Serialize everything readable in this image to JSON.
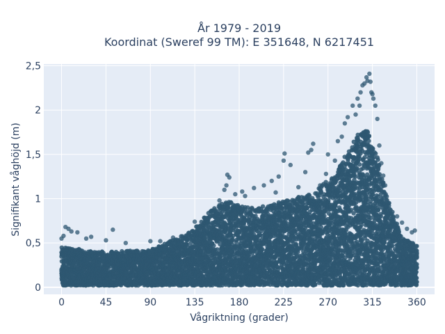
{
  "chart_data": {
    "type": "scatter",
    "title_line1": "År 1979 - 2019",
    "title_line2": "Koordinat (Sweref 99 TM): E 351648, N 6217451",
    "xlabel": "Vågriktning (grader)",
    "ylabel": "Signifikant våghöjd (m)",
    "xlim": [
      -18,
      378
    ],
    "ylim": [
      -0.08,
      2.52
    ],
    "xticks": [
      0,
      45,
      90,
      135,
      180,
      225,
      270,
      315,
      360
    ],
    "yticks": [
      0,
      0.5,
      1,
      1.5,
      2,
      2.5
    ],
    "xtick_labels": [
      "0",
      "45",
      "90",
      "135",
      "180",
      "225",
      "270",
      "315",
      "360"
    ],
    "ytick_labels": [
      "0",
      "0,5",
      "1",
      "1,5",
      "2",
      "2,5"
    ],
    "grid": true,
    "marker_color": "#2e5771",
    "background": "#e5ecf6",
    "series": [
      {
        "envelope_x": [
          0,
          45,
          90,
          130,
          155,
          170,
          180,
          200,
          225,
          250,
          275,
          290,
          300,
          310,
          318,
          330,
          345,
          360
        ],
        "envelope_upper": [
          0.45,
          0.4,
          0.42,
          0.62,
          0.9,
          0.98,
          0.92,
          0.9,
          0.97,
          1.05,
          1.25,
          1.55,
          1.72,
          1.78,
          1.55,
          1.0,
          0.55,
          0.5
        ],
        "sparse_points": [
          [
            0,
            0.55
          ],
          [
            2,
            0.58
          ],
          [
            4,
            0.68
          ],
          [
            7,
            0.66
          ],
          [
            10,
            0.63
          ],
          [
            16,
            0.62
          ],
          [
            25,
            0.55
          ],
          [
            30,
            0.57
          ],
          [
            45,
            0.53
          ],
          [
            52,
            0.65
          ],
          [
            65,
            0.5
          ],
          [
            90,
            0.52
          ],
          [
            100,
            0.52
          ],
          [
            113,
            0.56
          ],
          [
            135,
            0.74
          ],
          [
            148,
            0.73
          ],
          [
            160,
            0.98
          ],
          [
            165,
            1.1
          ],
          [
            167,
            1.15
          ],
          [
            168,
            1.27
          ],
          [
            170,
            1.24
          ],
          [
            176,
            1.05
          ],
          [
            183,
            1.08
          ],
          [
            186,
            1.03
          ],
          [
            195,
            1.12
          ],
          [
            205,
            1.15
          ],
          [
            213,
            1.2
          ],
          [
            217,
            1.07
          ],
          [
            220,
            1.25
          ],
          [
            225,
            1.43
          ],
          [
            226,
            1.51
          ],
          [
            232,
            1.38
          ],
          [
            240,
            1.13
          ],
          [
            247,
            1.3
          ],
          [
            250,
            1.52
          ],
          [
            253,
            1.55
          ],
          [
            255,
            1.62
          ],
          [
            262,
            1.15
          ],
          [
            268,
            1.28
          ],
          [
            270,
            1.5
          ],
          [
            277,
            1.43
          ],
          [
            280,
            1.65
          ],
          [
            284,
            1.7
          ],
          [
            287,
            1.85
          ],
          [
            290,
            1.92
          ],
          [
            295,
            2.05
          ],
          [
            298,
            1.95
          ],
          [
            300,
            2.13
          ],
          [
            302,
            2.05
          ],
          [
            303,
            2.2
          ],
          [
            305,
            2.28
          ],
          [
            307,
            2.3
          ],
          [
            309,
            2.37
          ],
          [
            310,
            2.33
          ],
          [
            312,
            2.41
          ],
          [
            313,
            2.32
          ],
          [
            314,
            2.2
          ],
          [
            315,
            2.18
          ],
          [
            316,
            2.13
          ],
          [
            318,
            2.05
          ],
          [
            320,
            1.9
          ],
          [
            322,
            1.6
          ],
          [
            324,
            1.4
          ],
          [
            326,
            1.26
          ],
          [
            328,
            1.15
          ],
          [
            332,
            0.95
          ],
          [
            340,
            0.8
          ],
          [
            345,
            0.73
          ],
          [
            350,
            0.66
          ],
          [
            355,
            0.62
          ],
          [
            358,
            0.64
          ]
        ]
      }
    ]
  }
}
